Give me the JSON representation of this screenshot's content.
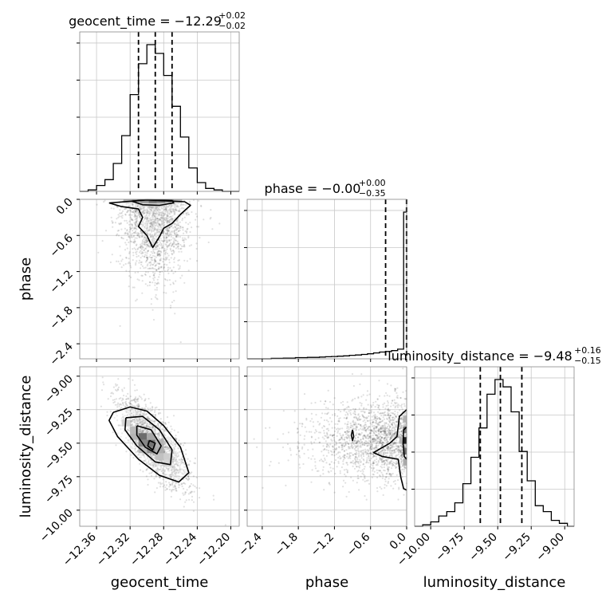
{
  "chart_data": {
    "type": "corner",
    "parameters": [
      "geocent_time",
      "phase",
      "luminosity_distance"
    ],
    "ranges": {
      "geocent_time": [
        -12.38,
        -12.19
      ],
      "phase": [
        -2.65,
        0.0
      ],
      "luminosity_distance": [
        -10.12,
        -8.93
      ]
    },
    "grid": true,
    "ticks": {
      "geocent_time": [
        "−12.36",
        "−12.32",
        "−12.28",
        "−12.24",
        "−12.20"
      ],
      "phase": [
        "−2.4",
        "−1.8",
        "−1.2",
        "−0.6",
        "0.0"
      ],
      "luminosity_distance": [
        "−10.00",
        "−9.75",
        "−9.50",
        "−9.25",
        "−9.00"
      ]
    },
    "tick_values": {
      "geocent_time": [
        -12.36,
        -12.32,
        -12.28,
        -12.24,
        -12.2
      ],
      "phase": [
        -2.4,
        -1.8,
        -1.2,
        -0.6,
        0.0
      ],
      "luminosity_distance": [
        -10.0,
        -9.75,
        -9.5,
        -9.25,
        -9.0
      ]
    },
    "titles": [
      {
        "param": "geocent_time",
        "label": "geocent_time = −12.29",
        "sup": "+0.02",
        "sub": "−0.02"
      },
      {
        "param": "phase",
        "label": "phase = −0.00",
        "sup": "+0.00",
        "sub": "−0.35"
      },
      {
        "param": "luminosity_distance",
        "label": "luminosity_distance = −9.48",
        "sup": "+0.16",
        "sub": "−0.15"
      }
    ],
    "quantiles": {
      "geocent_time": [
        -12.31,
        -12.29,
        -12.27
      ],
      "phase": [
        -0.35,
        -0.003,
        0.0
      ],
      "luminosity_distance": [
        -9.63,
        -9.48,
        -9.32
      ]
    },
    "histograms": {
      "geocent_time": {
        "edges": [
          -12.38,
          -12.37,
          -12.36,
          -12.35,
          -12.34,
          -12.33,
          -12.32,
          -12.31,
          -12.3,
          -12.29,
          -12.28,
          -12.27,
          -12.26,
          -12.25,
          -12.24,
          -12.23,
          -12.22,
          -12.21,
          -12.2,
          -12.19
        ],
        "counts": [
          0,
          0.01,
          0.04,
          0.08,
          0.19,
          0.38,
          0.66,
          0.87,
          1.0,
          0.94,
          0.79,
          0.58,
          0.37,
          0.16,
          0.06,
          0.02,
          0.01,
          0,
          0
        ]
      },
      "phase": {
        "edges": [
          -2.65,
          -2.55,
          -2.45,
          -2.35,
          -2.25,
          -2.15,
          -2.05,
          -1.95,
          -1.85,
          -1.75,
          -1.65,
          -1.55,
          -1.45,
          -1.35,
          -1.25,
          -1.15,
          -1.05,
          -0.95,
          -0.85,
          -0.75,
          -0.65,
          -0.55,
          -0.45,
          -0.35,
          -0.25,
          -0.15,
          -0.05,
          0.0
        ],
        "counts": [
          0,
          0,
          0,
          0,
          0.003,
          0.003,
          0.005,
          0.005,
          0.008,
          0.008,
          0.01,
          0.01,
          0.012,
          0.014,
          0.016,
          0.018,
          0.02,
          0.024,
          0.026,
          0.03,
          0.034,
          0.04,
          0.046,
          0.05,
          0.056,
          0.066,
          1.0
        ]
      },
      "luminosity_distance": {
        "edges": [
          -10.12,
          -10.06,
          -10.0,
          -9.94,
          -9.88,
          -9.82,
          -9.76,
          -9.7,
          -9.64,
          -9.58,
          -9.52,
          -9.46,
          -9.4,
          -9.34,
          -9.28,
          -9.22,
          -9.16,
          -9.1,
          -9.04,
          -8.98,
          -8.93
        ],
        "counts": [
          0,
          0.01,
          0.03,
          0.07,
          0.1,
          0.16,
          0.29,
          0.47,
          0.67,
          0.9,
          1.0,
          0.95,
          0.78,
          0.51,
          0.31,
          0.14,
          0.1,
          0.04,
          0.02,
          0
        ]
      }
    },
    "contours_2d": {
      "phase_vs_geocent_time": {
        "density_cells": [
          {
            "x": -12.293,
            "y": -0.03,
            "level": 1.0
          },
          {
            "x": -12.283,
            "y": -0.03,
            "level": 0.85
          },
          {
            "x": -12.303,
            "y": -0.03,
            "level": 0.7
          },
          {
            "x": -12.273,
            "y": -0.03,
            "level": 0.55
          },
          {
            "x": -12.313,
            "y": -0.03,
            "level": 0.45
          },
          {
            "x": -12.323,
            "y": -0.03,
            "level": 0.25
          },
          {
            "x": -12.263,
            "y": -0.03,
            "level": 0.25
          },
          {
            "x": -12.293,
            "y": -0.09,
            "level": 0.3
          },
          {
            "x": -12.283,
            "y": -0.09,
            "level": 0.25
          },
          {
            "x": -12.303,
            "y": -0.09,
            "level": 0.2
          }
        ],
        "contour_levels": [
          [
            [
              -12.345,
              -0.06
            ],
            [
              -12.33,
              -0.12
            ],
            [
              -12.31,
              -0.16
            ],
            [
              -12.305,
              -0.3
            ],
            [
              -12.31,
              -0.45
            ],
            [
              -12.3,
              -0.6
            ],
            [
              -12.293,
              -0.8
            ],
            [
              -12.285,
              -0.62
            ],
            [
              -12.28,
              -0.48
            ],
            [
              -12.27,
              -0.4
            ],
            [
              -12.26,
              -0.25
            ],
            [
              -12.248,
              -0.1
            ],
            [
              -12.255,
              -0.04
            ],
            [
              -12.3,
              -0.01
            ],
            [
              -12.345,
              -0.06
            ]
          ],
          [
            [
              -12.318,
              -0.03
            ],
            [
              -12.305,
              -0.09
            ],
            [
              -12.285,
              -0.1
            ],
            [
              -12.268,
              -0.06
            ],
            [
              -12.27,
              -0.02
            ],
            [
              -12.3,
              -0.005
            ],
            [
              -12.318,
              -0.03
            ]
          ]
        ],
        "scatter_center": [
          -12.29,
          -0.9
        ],
        "scatter_spread": [
          0.02,
          0.65
        ]
      },
      "luminosity_distance_vs_geocent_time": {
        "density_cells": [
          {
            "x": -12.305,
            "y": -9.45,
            "level": 1.0
          },
          {
            "x": -12.295,
            "y": -9.5,
            "level": 0.95
          },
          {
            "x": -12.305,
            "y": -9.5,
            "level": 0.8
          },
          {
            "x": -12.295,
            "y": -9.55,
            "level": 0.75
          },
          {
            "x": -12.315,
            "y": -9.4,
            "level": 0.4
          },
          {
            "x": -12.285,
            "y": -9.55,
            "level": 0.5
          },
          {
            "x": -12.285,
            "y": -9.6,
            "level": 0.35
          },
          {
            "x": -12.315,
            "y": -9.45,
            "level": 0.45
          },
          {
            "x": -12.275,
            "y": -9.6,
            "level": 0.25
          },
          {
            "x": -12.295,
            "y": -9.45,
            "level": 0.55
          },
          {
            "x": -12.285,
            "y": -9.5,
            "level": 0.45
          },
          {
            "x": -12.305,
            "y": -9.55,
            "level": 0.4
          },
          {
            "x": -12.325,
            "y": -9.35,
            "level": 0.2
          },
          {
            "x": -12.275,
            "y": -9.65,
            "level": 0.2
          }
        ],
        "contour_levels": [
          [
            [
              -12.34,
              -9.27
            ],
            [
              -12.32,
              -9.23
            ],
            [
              -12.3,
              -9.26
            ],
            [
              -12.28,
              -9.37
            ],
            [
              -12.26,
              -9.53
            ],
            [
              -12.25,
              -9.72
            ],
            [
              -12.262,
              -9.79
            ],
            [
              -12.285,
              -9.74
            ],
            [
              -12.31,
              -9.62
            ],
            [
              -12.335,
              -9.45
            ],
            [
              -12.345,
              -9.33
            ],
            [
              -12.34,
              -9.27
            ]
          ],
          [
            [
              -12.325,
              -9.31
            ],
            [
              -12.305,
              -9.3
            ],
            [
              -12.285,
              -9.4
            ],
            [
              -12.27,
              -9.55
            ],
            [
              -12.272,
              -9.66
            ],
            [
              -12.29,
              -9.64
            ],
            [
              -12.312,
              -9.52
            ],
            [
              -12.326,
              -9.4
            ],
            [
              -12.325,
              -9.31
            ]
          ],
          [
            [
              -12.312,
              -9.37
            ],
            [
              -12.295,
              -9.4
            ],
            [
              -12.283,
              -9.52
            ],
            [
              -12.288,
              -9.58
            ],
            [
              -12.302,
              -9.53
            ],
            [
              -12.312,
              -9.44
            ],
            [
              -12.312,
              -9.37
            ]
          ],
          [
            [
              -12.297,
              -9.48
            ],
            [
              -12.29,
              -9.5
            ],
            [
              -12.293,
              -9.55
            ],
            [
              -12.299,
              -9.52
            ],
            [
              -12.297,
              -9.48
            ]
          ]
        ],
        "scatter_center": [
          -12.292,
          -9.5
        ],
        "scatter_spread": [
          0.02,
          0.16
        ],
        "scatter_correlation": -0.75
      },
      "luminosity_distance_vs_phase": {
        "density_cells": [
          {
            "x": -0.03,
            "y": -9.48,
            "level": 1.0
          },
          {
            "x": -0.03,
            "y": -9.56,
            "level": 0.6
          },
          {
            "x": -0.03,
            "y": -9.4,
            "level": 0.55
          },
          {
            "x": -0.03,
            "y": -9.32,
            "level": 0.25
          },
          {
            "x": -0.03,
            "y": -9.64,
            "level": 0.3
          },
          {
            "x": -0.09,
            "y": -9.48,
            "level": 0.25
          }
        ],
        "contour_levels": [
          [
            [
              0.0,
              -9.25
            ],
            [
              -0.12,
              -9.3
            ],
            [
              -0.16,
              -9.45
            ],
            [
              -0.28,
              -9.5
            ],
            [
              -0.55,
              -9.57
            ],
            [
              -0.4,
              -9.6
            ],
            [
              -0.14,
              -9.62
            ],
            [
              -0.1,
              -9.75
            ],
            [
              -0.05,
              -9.84
            ],
            [
              0.0,
              -9.85
            ]
          ],
          [
            [
              0.0,
              -9.38
            ],
            [
              -0.05,
              -9.4
            ],
            [
              -0.06,
              -9.5
            ],
            [
              -0.04,
              -9.6
            ],
            [
              0.0,
              -9.62
            ]
          ],
          [
            [
              -0.9,
              -9.4
            ],
            [
              -0.88,
              -9.45
            ],
            [
              -0.9,
              -9.48
            ],
            [
              -0.92,
              -9.44
            ],
            [
              -0.9,
              -9.4
            ]
          ]
        ],
        "scatter_center": [
          -0.5,
          -9.48
        ],
        "scatter_spread": [
          0.6,
          0.15
        ]
      }
    }
  }
}
